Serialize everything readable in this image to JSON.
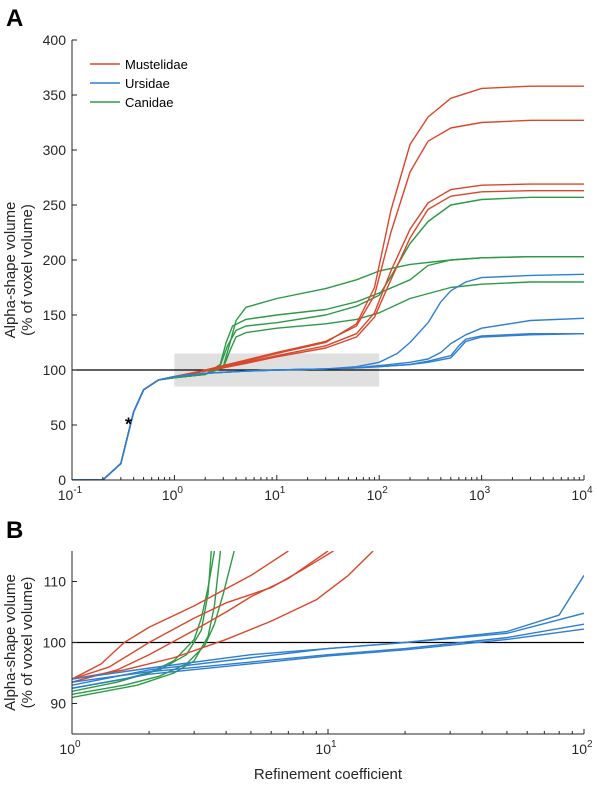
{
  "figure": {
    "annotation": "*",
    "colors": {
      "Mustelidae": "#d9472b",
      "Ursidae": "#2f7fd1",
      "Canidae": "#2e9a46"
    }
  },
  "chart_data": [
    {
      "panel": "A",
      "type": "line",
      "xscale": "log",
      "xlim": [
        0.1,
        10000
      ],
      "ylim": [
        0,
        400
      ],
      "xticks": [
        0.1,
        1,
        10,
        100,
        1000,
        10000
      ],
      "yticks": [
        0,
        50,
        100,
        150,
        200,
        250,
        300,
        350,
        400
      ],
      "ytick_labels": [
        "0",
        "50",
        "100",
        "150",
        "200",
        "250",
        "300",
        "350",
        "400"
      ],
      "xlabel": "",
      "ylabel": [
        "Alpha-shape volume",
        "(% of voxel volume)"
      ],
      "reference_line": 100,
      "highlight_box": {
        "x": [
          1,
          100
        ],
        "y": [
          85,
          115
        ]
      },
      "legend": {
        "position": "top-left",
        "entries": [
          "Mustelidae",
          "Ursidae",
          "Canidae"
        ]
      },
      "series": [
        {
          "family": "Mustelidae",
          "x": [
            0.1,
            0.2,
            0.3,
            0.4,
            0.5,
            0.7,
            1,
            2,
            3,
            5,
            10,
            30,
            60,
            90,
            130,
            200,
            300,
            500,
            1000,
            3000,
            10000
          ],
          "y": [
            0,
            0,
            15,
            62,
            82,
            91,
            94,
            99,
            103,
            108,
            115,
            125,
            142,
            175,
            245,
            305,
            330,
            347,
            356,
            358,
            358
          ]
        },
        {
          "family": "Mustelidae",
          "x": [
            0.1,
            0.2,
            0.3,
            0.4,
            0.5,
            0.7,
            1,
            2,
            3,
            5,
            10,
            30,
            60,
            90,
            130,
            200,
            300,
            500,
            1000,
            3000,
            10000
          ],
          "y": [
            0,
            0,
            15,
            62,
            82,
            91,
            94,
            100,
            104,
            109,
            116,
            126,
            140,
            168,
            225,
            280,
            308,
            320,
            325,
            327,
            327
          ]
        },
        {
          "family": "Mustelidae",
          "x": [
            0.1,
            0.2,
            0.3,
            0.4,
            0.5,
            0.7,
            1,
            2,
            3,
            5,
            10,
            30,
            60,
            90,
            130,
            200,
            300,
            500,
            1000,
            3000,
            10000
          ],
          "y": [
            0,
            0,
            15,
            62,
            82,
            91,
            94,
            99,
            102,
            107,
            113,
            122,
            133,
            152,
            190,
            228,
            252,
            264,
            268,
            269,
            269
          ]
        },
        {
          "family": "Mustelidae",
          "x": [
            0.1,
            0.2,
            0.3,
            0.4,
            0.5,
            0.7,
            1,
            2,
            3,
            5,
            10,
            30,
            60,
            90,
            130,
            200,
            300,
            500,
            1000,
            3000,
            10000
          ],
          "y": [
            0,
            0,
            15,
            62,
            82,
            91,
            94,
            99,
            102,
            106,
            112,
            120,
            130,
            148,
            182,
            220,
            246,
            258,
            262,
            263,
            263
          ]
        },
        {
          "family": "Ursidae",
          "x": [
            0.1,
            0.2,
            0.3,
            0.4,
            0.5,
            0.7,
            1,
            2,
            5,
            10,
            30,
            60,
            100,
            150,
            200,
            300,
            400,
            500,
            700,
            1000,
            3000,
            10000
          ],
          "y": [
            0,
            0,
            15,
            62,
            82,
            91,
            94,
            97,
            99,
            100,
            101,
            103,
            107,
            115,
            125,
            143,
            162,
            172,
            180,
            184,
            186,
            187
          ]
        },
        {
          "family": "Ursidae",
          "x": [
            0.1,
            0.2,
            0.3,
            0.4,
            0.5,
            0.7,
            1,
            2,
            5,
            10,
            30,
            60,
            100,
            200,
            300,
            400,
            500,
            700,
            1000,
            3000,
            10000
          ],
          "y": [
            0,
            0,
            15,
            62,
            82,
            91,
            94,
            97,
            99,
            100,
            101,
            102,
            104,
            107,
            110,
            116,
            124,
            132,
            138,
            145,
            147
          ]
        },
        {
          "family": "Ursidae",
          "x": [
            0.1,
            0.2,
            0.3,
            0.4,
            0.5,
            0.7,
            1,
            2,
            5,
            10,
            30,
            60,
            100,
            200,
            300,
            500,
            600,
            700,
            1000,
            3000,
            10000
          ],
          "y": [
            0,
            0,
            15,
            62,
            82,
            91,
            94,
            97,
            99,
            100,
            101,
            102,
            103,
            105,
            108,
            113,
            122,
            128,
            131,
            133,
            133
          ]
        },
        {
          "family": "Ursidae",
          "x": [
            0.1,
            0.2,
            0.3,
            0.4,
            0.5,
            0.7,
            1,
            2,
            5,
            10,
            30,
            60,
            100,
            200,
            300,
            500,
            600,
            700,
            1000,
            3000,
            10000
          ],
          "y": [
            0,
            0,
            15,
            62,
            82,
            91,
            94,
            97,
            99,
            100,
            101,
            102,
            103,
            105,
            107,
            111,
            119,
            126,
            130,
            132,
            133
          ]
        },
        {
          "family": "Canidae",
          "x": [
            0.1,
            0.2,
            0.3,
            0.4,
            0.5,
            0.7,
            1,
            2,
            3,
            3.5,
            4,
            5,
            10,
            30,
            60,
            100,
            200,
            500,
            1000,
            3000,
            10000
          ],
          "y": [
            0,
            0,
            15,
            62,
            82,
            91,
            93,
            96,
            103,
            125,
            145,
            157,
            165,
            174,
            182,
            190,
            196,
            200,
            202,
            203,
            203
          ]
        },
        {
          "family": "Canidae",
          "x": [
            0.1,
            0.2,
            0.3,
            0.4,
            0.5,
            0.7,
            1,
            2,
            2.8,
            3.2,
            3.7,
            5,
            10,
            30,
            60,
            100,
            200,
            300,
            500,
            1000,
            3000,
            10000
          ],
          "y": [
            0,
            0,
            15,
            62,
            82,
            91,
            93,
            96,
            105,
            125,
            140,
            146,
            150,
            155,
            162,
            170,
            182,
            195,
            200,
            202,
            203,
            203
          ]
        },
        {
          "family": "Canidae",
          "x": [
            0.1,
            0.2,
            0.3,
            0.4,
            0.5,
            0.7,
            1,
            2,
            2.8,
            3.3,
            4,
            5,
            10,
            30,
            60,
            100,
            130,
            200,
            300,
            500,
            1000,
            3000,
            10000
          ],
          "y": [
            0,
            0,
            15,
            62,
            82,
            91,
            93,
            96,
            104,
            122,
            136,
            140,
            143,
            150,
            158,
            168,
            185,
            215,
            235,
            250,
            255,
            257,
            257
          ]
        },
        {
          "family": "Canidae",
          "x": [
            0.1,
            0.2,
            0.3,
            0.4,
            0.5,
            0.7,
            1,
            2,
            3,
            3.5,
            4,
            5,
            10,
            30,
            60,
            100,
            200,
            500,
            1000,
            3000,
            10000
          ],
          "y": [
            0,
            0,
            15,
            62,
            82,
            91,
            93,
            96,
            102,
            118,
            130,
            134,
            138,
            142,
            146,
            152,
            165,
            175,
            178,
            180,
            180
          ]
        }
      ]
    },
    {
      "panel": "B",
      "type": "line",
      "xscale": "log",
      "xlim": [
        1,
        100
      ],
      "ylim": [
        85,
        115
      ],
      "xticks": [
        1,
        10,
        100
      ],
      "yticks": [
        90,
        100,
        110
      ],
      "ytick_labels": [
        "90",
        "100",
        "110"
      ],
      "xlabel": "Refinement coefficient",
      "ylabel": [
        "Alpha-shape volume",
        "(% of voxel volume)"
      ],
      "reference_line": 100,
      "series": [
        {
          "family": "Mustelidae",
          "x": [
            1,
            1.3,
            1.6,
            2,
            3,
            5,
            7
          ],
          "y": [
            94,
            96.5,
            100,
            102.5,
            106,
            111,
            115
          ]
        },
        {
          "family": "Mustelidae",
          "x": [
            1,
            1.4,
            2,
            3,
            4,
            6,
            8,
            10.5
          ],
          "y": [
            94,
            96,
            100,
            104,
            106.5,
            109,
            112,
            115
          ]
        },
        {
          "family": "Mustelidae",
          "x": [
            1,
            1.5,
            2,
            3,
            4,
            5,
            7,
            10
          ],
          "y": [
            93.5,
            95.5,
            98,
            102,
            105,
            107.5,
            110.5,
            115
          ]
        },
        {
          "family": "Mustelidae",
          "x": [
            1,
            1.6,
            2.5,
            4,
            6,
            9,
            12,
            15
          ],
          "y": [
            94,
            95.5,
            97.5,
            100.5,
            103.5,
            107,
            111,
            115
          ]
        },
        {
          "family": "Ursidae",
          "x": [
            1,
            2,
            5,
            10,
            20,
            50,
            80,
            100
          ],
          "y": [
            94,
            95.8,
            98,
            99,
            100,
            101.8,
            104.5,
            111
          ]
        },
        {
          "family": "Ursidae",
          "x": [
            1,
            2,
            5,
            10,
            20,
            50,
            100
          ],
          "y": [
            93,
            95.5,
            97.5,
            99,
            100,
            101.5,
            104.8
          ]
        },
        {
          "family": "Ursidae",
          "x": [
            1,
            2,
            5,
            10,
            20,
            50,
            100
          ],
          "y": [
            93.5,
            95.2,
            96.8,
            98,
            99,
            100.8,
            103
          ]
        },
        {
          "family": "Ursidae",
          "x": [
            1,
            2,
            5,
            10,
            20,
            50,
            100
          ],
          "y": [
            92.5,
            94.8,
            96.5,
            97.8,
            98.8,
            100.5,
            102.2
          ]
        },
        {
          "family": "Canidae",
          "x": [
            1,
            1.5,
            2,
            2.5,
            3,
            3.2,
            3.4,
            3.6
          ],
          "y": [
            92,
            93.5,
            95,
            97,
            100.5,
            104,
            109,
            115
          ]
        },
        {
          "family": "Canidae",
          "x": [
            1,
            1.6,
            2.2,
            2.8,
            3.3,
            3.6,
            3.9,
            4.3
          ],
          "y": [
            91.5,
            93,
            94.5,
            96.5,
            99.5,
            103,
            108,
            115
          ]
        },
        {
          "family": "Canidae",
          "x": [
            1,
            1.8,
            2.5,
            3,
            3.4,
            3.6,
            3.8
          ],
          "y": [
            91,
            93,
            95,
            97,
            101,
            106,
            115
          ]
        },
        {
          "family": "Canidae",
          "x": [
            1,
            1.6,
            2.2,
            2.8,
            3.2,
            3.4,
            3.5
          ],
          "y": [
            92.5,
            94,
            95.5,
            98,
            102,
            108,
            115
          ]
        }
      ]
    }
  ]
}
